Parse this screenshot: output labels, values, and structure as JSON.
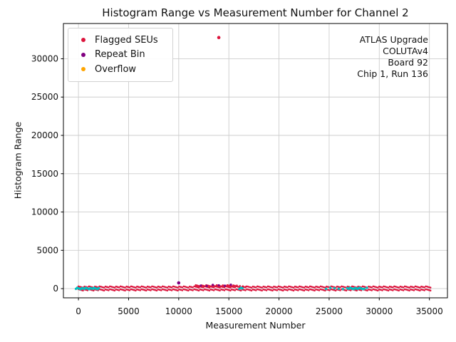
{
  "chart_data": {
    "type": "scatter",
    "title": "Histogram Range vs Measurement Number for Channel 2",
    "xlabel": "Measurement Number",
    "ylabel": "Histogram Range",
    "xlim": [
      -1500,
      36800
    ],
    "ylim": [
      -1200,
      34600
    ],
    "x_ticks": [
      0,
      5000,
      10000,
      15000,
      20000,
      25000,
      30000,
      35000
    ],
    "x_tick_labels": [
      "0",
      "5000",
      "10000",
      "15000",
      "20000",
      "25000",
      "30000",
      "35000"
    ],
    "y_ticks": [
      0,
      5000,
      10000,
      15000,
      20000,
      25000,
      30000
    ],
    "y_tick_labels": [
      "0",
      "5000",
      "10000",
      "15000",
      "20000",
      "25000",
      "30000"
    ],
    "grid": true,
    "grid_color": "#cdcdcd",
    "legend": {
      "position": "upper left",
      "entries": [
        {
          "label": "Flagged SEUs",
          "color": "#dc143c"
        },
        {
          "label": "Repeat Bin",
          "color": "#800080"
        },
        {
          "label": "Overflow",
          "color": "#ffa500"
        }
      ]
    },
    "annotation": {
      "position": "upper right",
      "lines": [
        "ATLAS Upgrade",
        "COLUTAv4",
        "Board 92",
        "Chip 1, Run 136"
      ]
    },
    "series": [
      {
        "name": "Flagged SEUs",
        "color": "#dc143c",
        "marker_size": 1.3,
        "segments": [
          {
            "x0": 0,
            "x1": 35200,
            "y": 220,
            "step": 150
          },
          {
            "x0": 0,
            "x1": 35200,
            "y": -160,
            "step": 150
          },
          {
            "x0": 11700,
            "x1": 15700,
            "y": 380,
            "step": 150
          },
          {
            "x0": 15800,
            "x1": 16700,
            "y": 330,
            "step": 300
          }
        ],
        "points": [
          [
            14000,
            32767
          ]
        ]
      },
      {
        "name": "Repeat Bin",
        "color": "#800080",
        "marker_size": 1.6,
        "segments": [
          {
            "x0": 12200,
            "x1": 15500,
            "y": 430,
            "step": 600
          }
        ],
        "points": [
          [
            10000,
            750
          ]
        ]
      },
      {
        "name": "Overflow",
        "color": "#ffa500",
        "marker_size": 1.6,
        "segments": [],
        "points": []
      },
      {
        "name": "unlabeled_series",
        "color": "#00bfbf",
        "marker_size": 1.7,
        "segments": [
          {
            "x0": -250,
            "x1": 2050,
            "y": 20,
            "step": 120
          },
          {
            "x0": 16050,
            "x1": 16350,
            "y": 20,
            "step": 150
          },
          {
            "x0": 24700,
            "x1": 26900,
            "y": 20,
            "step": 420
          },
          {
            "x0": 26950,
            "x1": 28400,
            "y": 20,
            "step": 130
          },
          {
            "x0": 28500,
            "x1": 28900,
            "y": 20,
            "step": 260
          }
        ],
        "points": []
      }
    ]
  }
}
